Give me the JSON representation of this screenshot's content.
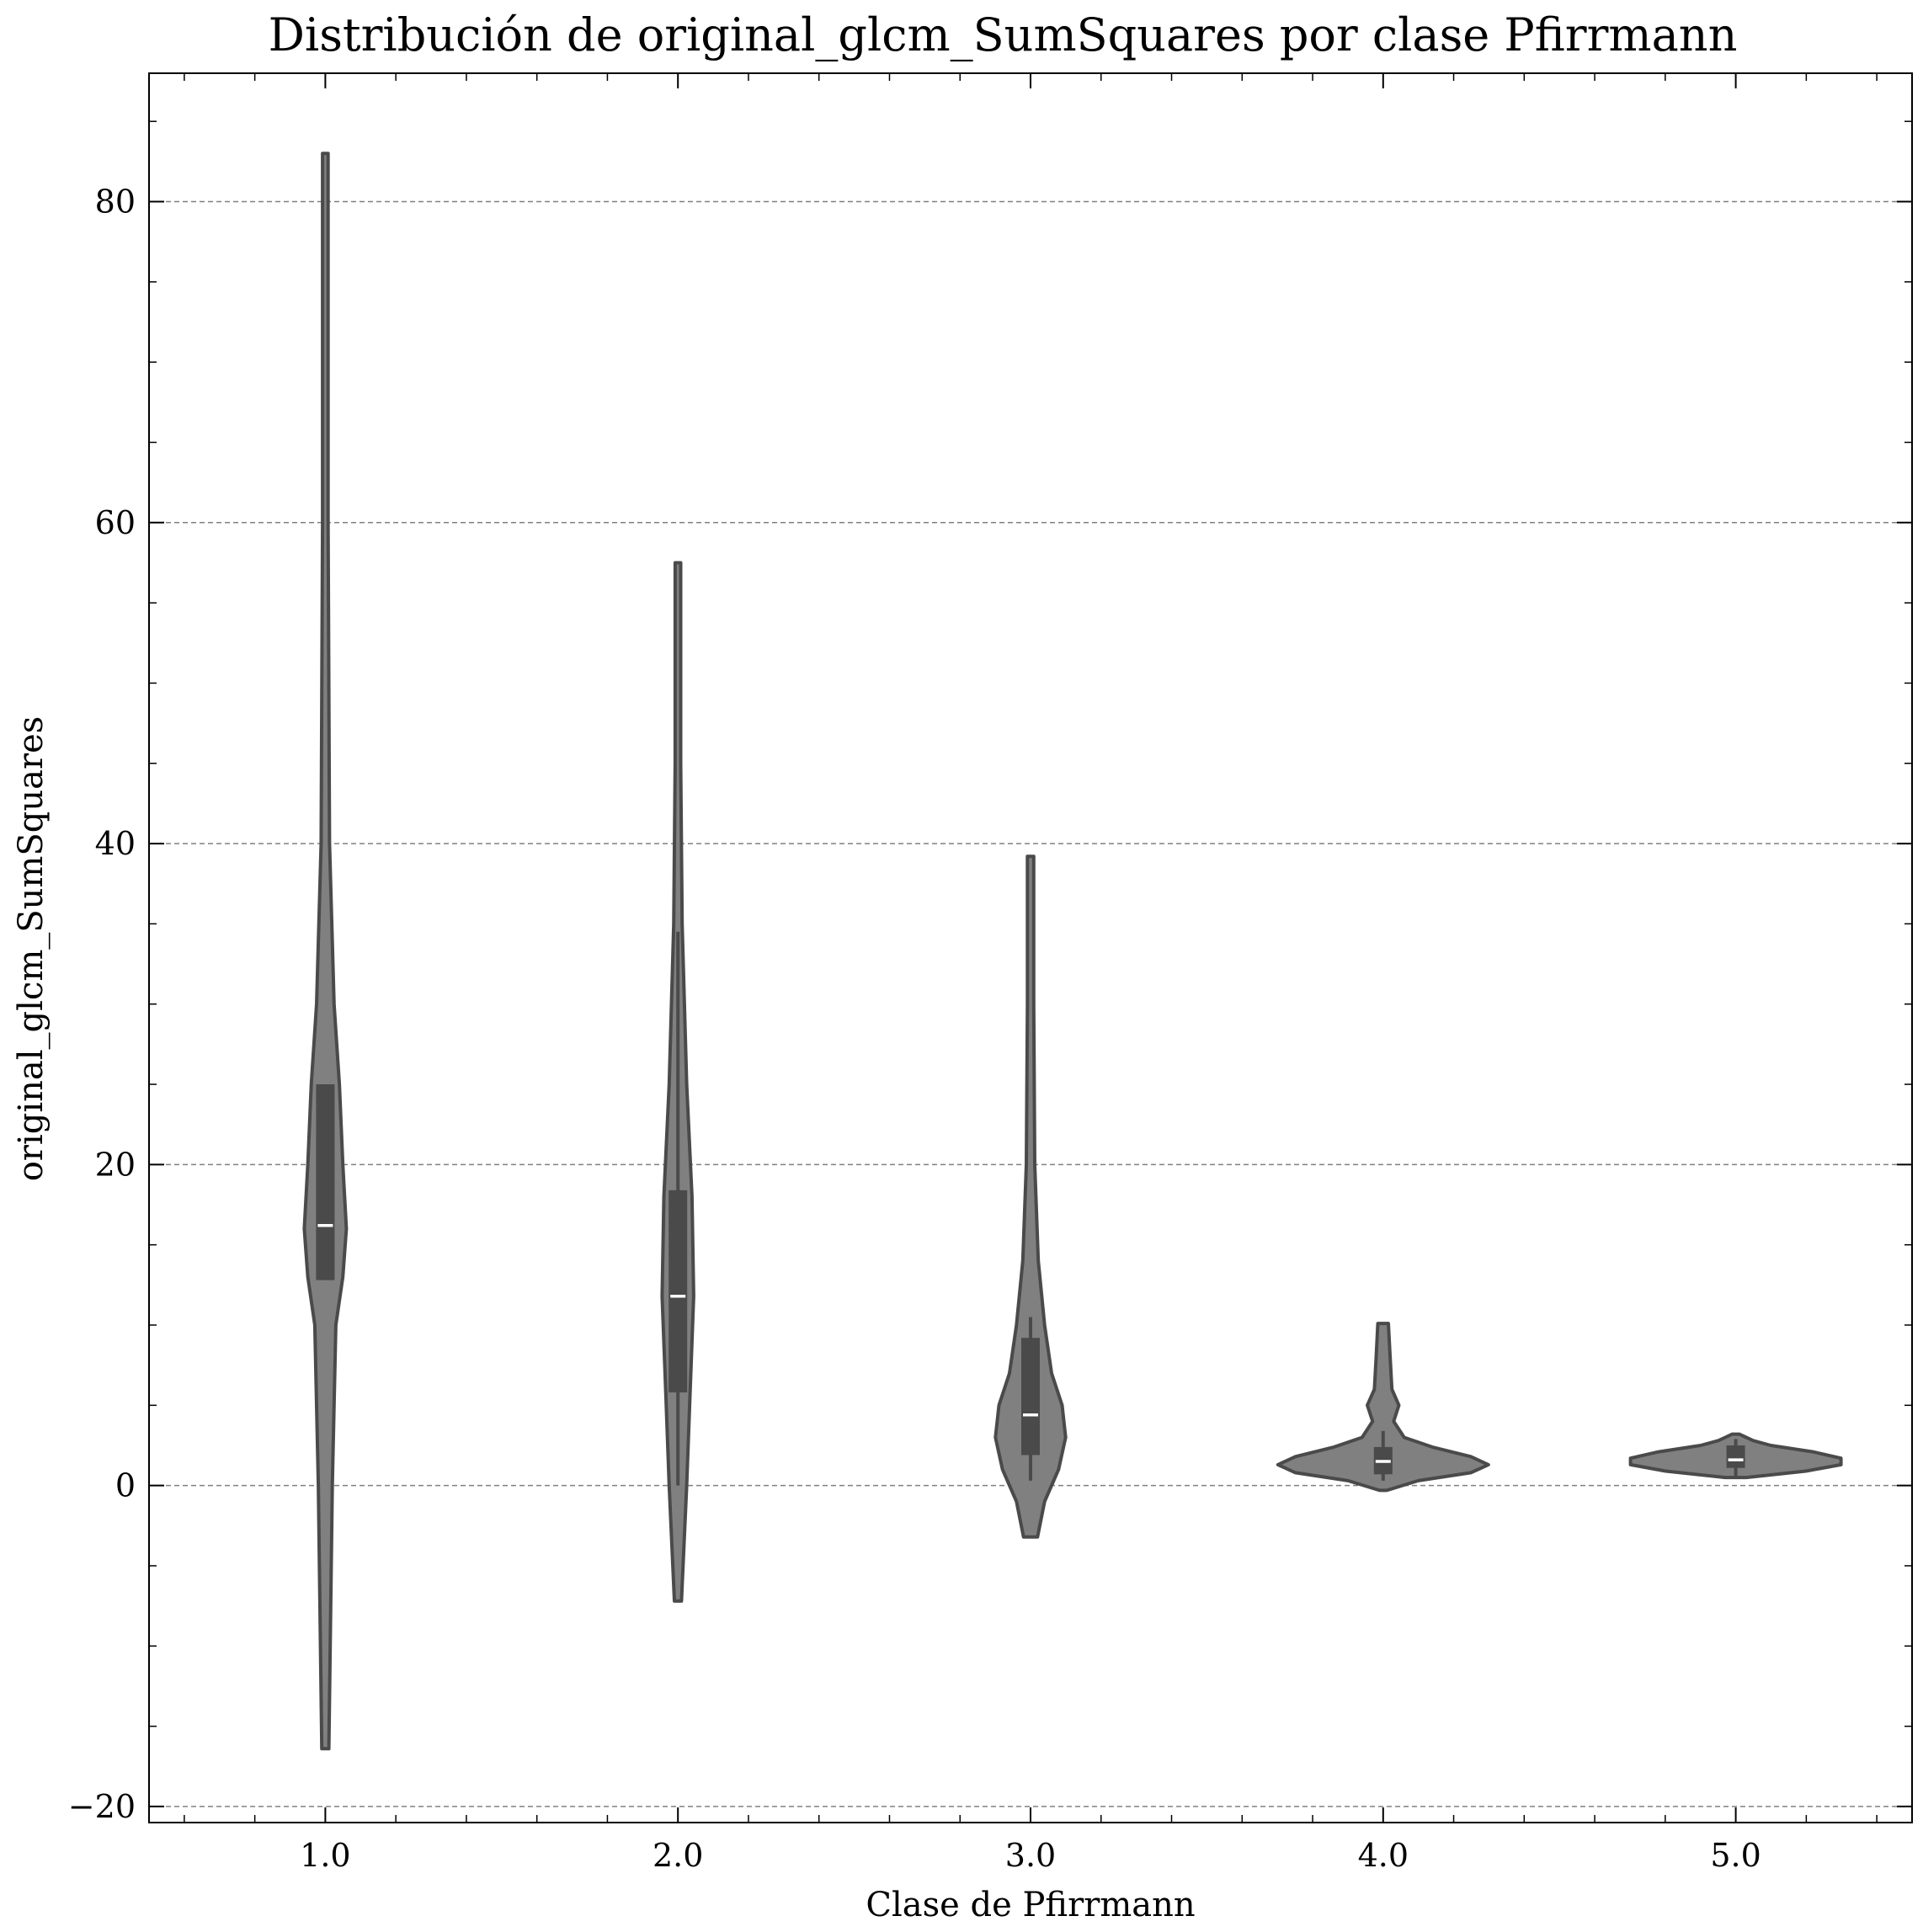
{
  "chart_data": {
    "type": "violin",
    "title": "Distribución de original_glcm_SumSquares por clase Pfirrmann",
    "xlabel": "Clase de Pfirrmann",
    "ylabel": "original_glcm_SumSquares",
    "xlim": [
      0.5,
      5.5
    ],
    "ylim": [
      -21,
      88
    ],
    "x_ticks": [
      1.0,
      2.0,
      3.0,
      4.0,
      5.0
    ],
    "x_tick_labels": [
      "1.0",
      "2.0",
      "3.0",
      "4.0",
      "5.0"
    ],
    "y_ticks": [
      -20,
      0,
      20,
      40,
      60,
      80
    ],
    "y_tick_labels": [
      "−20",
      "0",
      "20",
      "40",
      "60",
      "80"
    ],
    "grid": "horizontal-dashed",
    "colors": {
      "violin_fill": "#808080",
      "violin_edge": "#4a4a4a",
      "box": "#4a4a4a",
      "median": "#ffffff",
      "grid": "#808080"
    },
    "violins": [
      {
        "category": "1.0",
        "min": -16.4,
        "q1": 12.8,
        "median": 16.2,
        "q3": 25.0,
        "max": 83.0,
        "whisker_low": 12.8,
        "whisker_high": 25.0,
        "density": [
          [
            -16.4,
            0.01
          ],
          [
            0,
            0.02
          ],
          [
            10,
            0.03
          ],
          [
            13,
            0.05
          ],
          [
            16,
            0.06
          ],
          [
            20,
            0.05
          ],
          [
            25,
            0.04
          ],
          [
            30,
            0.025
          ],
          [
            40,
            0.012
          ],
          [
            60,
            0.008
          ],
          [
            83,
            0.008
          ]
        ]
      },
      {
        "category": "2.0",
        "min": -7.2,
        "q1": 5.8,
        "median": 11.8,
        "q3": 18.4,
        "max": 57.5,
        "whisker_low": 0.0,
        "whisker_high": 34.5,
        "density": [
          [
            -7.2,
            0.01
          ],
          [
            0,
            0.025
          ],
          [
            6,
            0.035
          ],
          [
            11.8,
            0.045
          ],
          [
            18,
            0.04
          ],
          [
            25,
            0.025
          ],
          [
            35,
            0.012
          ],
          [
            45,
            0.008
          ],
          [
            57.5,
            0.008
          ]
        ]
      },
      {
        "category": "3.0",
        "min": -3.2,
        "q1": 1.9,
        "median": 4.4,
        "q3": 9.2,
        "max": 39.2,
        "whisker_low": 0.3,
        "whisker_high": 10.5,
        "density": [
          [
            -3.2,
            0.02
          ],
          [
            -1,
            0.04
          ],
          [
            1,
            0.08
          ],
          [
            3,
            0.1
          ],
          [
            5,
            0.09
          ],
          [
            7,
            0.06
          ],
          [
            10,
            0.04
          ],
          [
            14,
            0.022
          ],
          [
            20,
            0.012
          ],
          [
            30,
            0.009
          ],
          [
            39.2,
            0.009
          ]
        ]
      },
      {
        "category": "4.0",
        "min": -0.3,
        "q1": 0.7,
        "median": 1.5,
        "q3": 2.4,
        "max": 10.1,
        "whisker_low": 0.3,
        "whisker_high": 3.4,
        "density": [
          [
            -0.3,
            0.01
          ],
          [
            0.3,
            0.1
          ],
          [
            0.8,
            0.25
          ],
          [
            1.3,
            0.3
          ],
          [
            1.8,
            0.25
          ],
          [
            2.4,
            0.14
          ],
          [
            3.0,
            0.06
          ],
          [
            4,
            0.03
          ],
          [
            5,
            0.045
          ],
          [
            6,
            0.025
          ],
          [
            8,
            0.02
          ],
          [
            10.1,
            0.015
          ]
        ]
      },
      {
        "category": "5.0",
        "min": 0.5,
        "q1": 1.1,
        "median": 1.6,
        "q3": 2.5,
        "max": 3.2,
        "whisker_low": 0.6,
        "whisker_high": 2.9,
        "density": [
          [
            0.5,
            0.03
          ],
          [
            0.9,
            0.2
          ],
          [
            1.3,
            0.3
          ],
          [
            1.7,
            0.3
          ],
          [
            2.1,
            0.22
          ],
          [
            2.5,
            0.1
          ],
          [
            2.8,
            0.05
          ],
          [
            3.0,
            0.03
          ],
          [
            3.2,
            0.01
          ]
        ]
      }
    ]
  }
}
